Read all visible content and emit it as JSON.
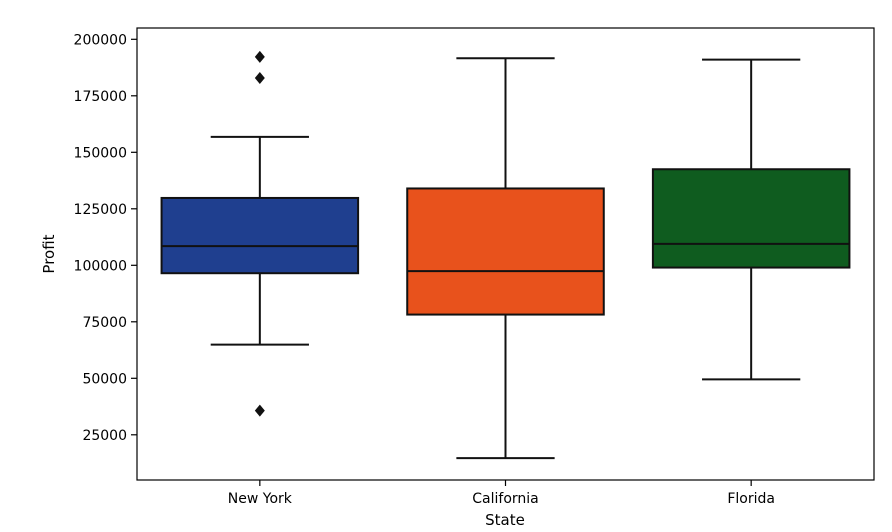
{
  "chart_data": {
    "type": "box",
    "xlabel": "State",
    "ylabel": "Profit",
    "ylim": [
      5000,
      205000
    ],
    "yticks": [
      25000,
      50000,
      75000,
      100000,
      125000,
      150000,
      175000,
      200000
    ],
    "ytick_labels": [
      "25000",
      "50000",
      "75000",
      "100000",
      "125000",
      "150000",
      "175000",
      "200000"
    ],
    "grid": false,
    "categories": [
      "New York",
      "California",
      "Florida"
    ],
    "boxes": [
      {
        "category": "New York",
        "color": "#1f3f8f",
        "whisker_low": 64900,
        "q1": 96500,
        "median": 108500,
        "q3": 129800,
        "whisker_high": 156800,
        "outliers": [
          192200,
          182900,
          35700
        ]
      },
      {
        "category": "California",
        "color": "#e8521c",
        "whisker_low": 14700,
        "q1": 78200,
        "median": 97400,
        "q3": 134000,
        "whisker_high": 191600,
        "outliers": []
      },
      {
        "category": "Florida",
        "color": "#0f5c1f",
        "whisker_low": 49500,
        "q1": 99000,
        "median": 109500,
        "q3": 142500,
        "whisker_high": 191000,
        "outliers": []
      }
    ]
  }
}
